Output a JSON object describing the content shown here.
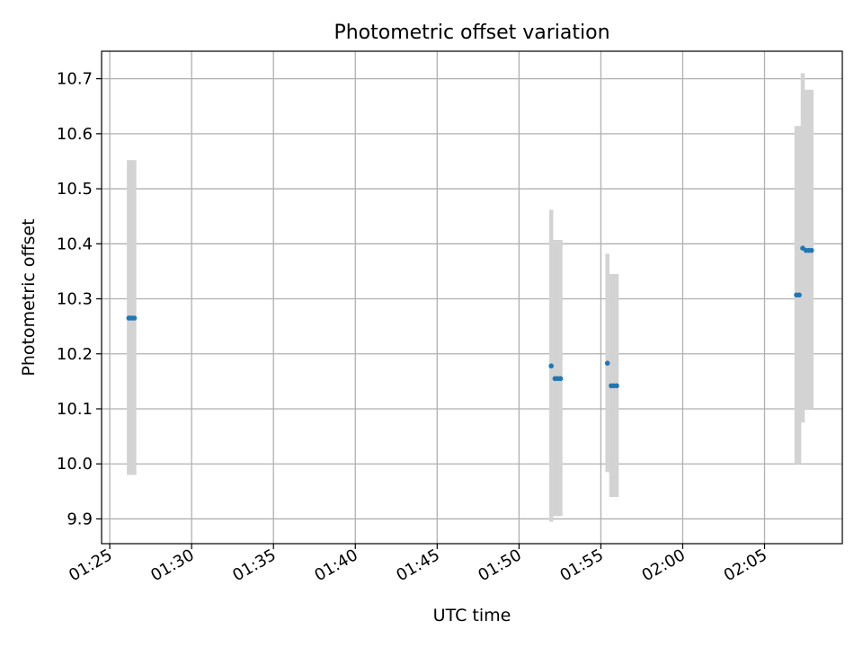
{
  "chart_data": {
    "type": "scatter",
    "title": "Photometric offset variation",
    "xlabel": "UTC time",
    "ylabel": "Photometric offset",
    "xlim": [
      "01:24:30",
      "02:09:45"
    ],
    "ylim": [
      9.855,
      10.75
    ],
    "grid": true,
    "x_ticks": [
      "01:25",
      "01:30",
      "01:35",
      "01:40",
      "01:45",
      "01:50",
      "01:55",
      "02:00",
      "02:05"
    ],
    "y_ticks": [
      "9.9",
      "10.0",
      "10.1",
      "10.2",
      "10.3",
      "10.4",
      "10.5",
      "10.6",
      "10.7"
    ],
    "colors": {
      "points": "#1f77b4",
      "error_bars": "#d3d3d3",
      "grid": "#b0b0b0"
    },
    "series": [
      {
        "points": [
          {
            "time": "01:26:10",
            "y": 10.265,
            "y_low": 9.98,
            "y_high": 10.552
          },
          {
            "time": "01:26:20",
            "y": 10.265,
            "y_low": 9.98,
            "y_high": 10.552
          },
          {
            "time": "01:26:30",
            "y": 10.265,
            "y_low": 9.98,
            "y_high": 10.552
          },
          {
            "time": "01:51:58",
            "y": 10.178,
            "y_low": 9.895,
            "y_high": 10.462
          },
          {
            "time": "01:52:12",
            "y": 10.155,
            "y_low": 9.905,
            "y_high": 10.407
          },
          {
            "time": "01:52:22",
            "y": 10.155,
            "y_low": 9.905,
            "y_high": 10.407
          },
          {
            "time": "01:52:32",
            "y": 10.155,
            "y_low": 9.905,
            "y_high": 10.407
          },
          {
            "time": "01:55:24",
            "y": 10.183,
            "y_low": 9.985,
            "y_high": 10.382
          },
          {
            "time": "01:55:38",
            "y": 10.142,
            "y_low": 9.94,
            "y_high": 10.345
          },
          {
            "time": "01:55:48",
            "y": 10.142,
            "y_low": 9.94,
            "y_high": 10.345
          },
          {
            "time": "01:55:58",
            "y": 10.142,
            "y_low": 9.94,
            "y_high": 10.345
          },
          {
            "time": "02:06:57",
            "y": 10.307,
            "y_low": 10.0,
            "y_high": 10.614
          },
          {
            "time": "02:07:07",
            "y": 10.307,
            "y_low": 10.0,
            "y_high": 10.614
          },
          {
            "time": "02:07:20",
            "y": 10.392,
            "y_low": 10.075,
            "y_high": 10.71
          },
          {
            "time": "02:07:32",
            "y": 10.388,
            "y_low": 10.1,
            "y_high": 10.68
          },
          {
            "time": "02:07:42",
            "y": 10.388,
            "y_low": 10.1,
            "y_high": 10.68
          },
          {
            "time": "02:07:52",
            "y": 10.388,
            "y_low": 10.1,
            "y_high": 10.68
          }
        ]
      }
    ]
  }
}
